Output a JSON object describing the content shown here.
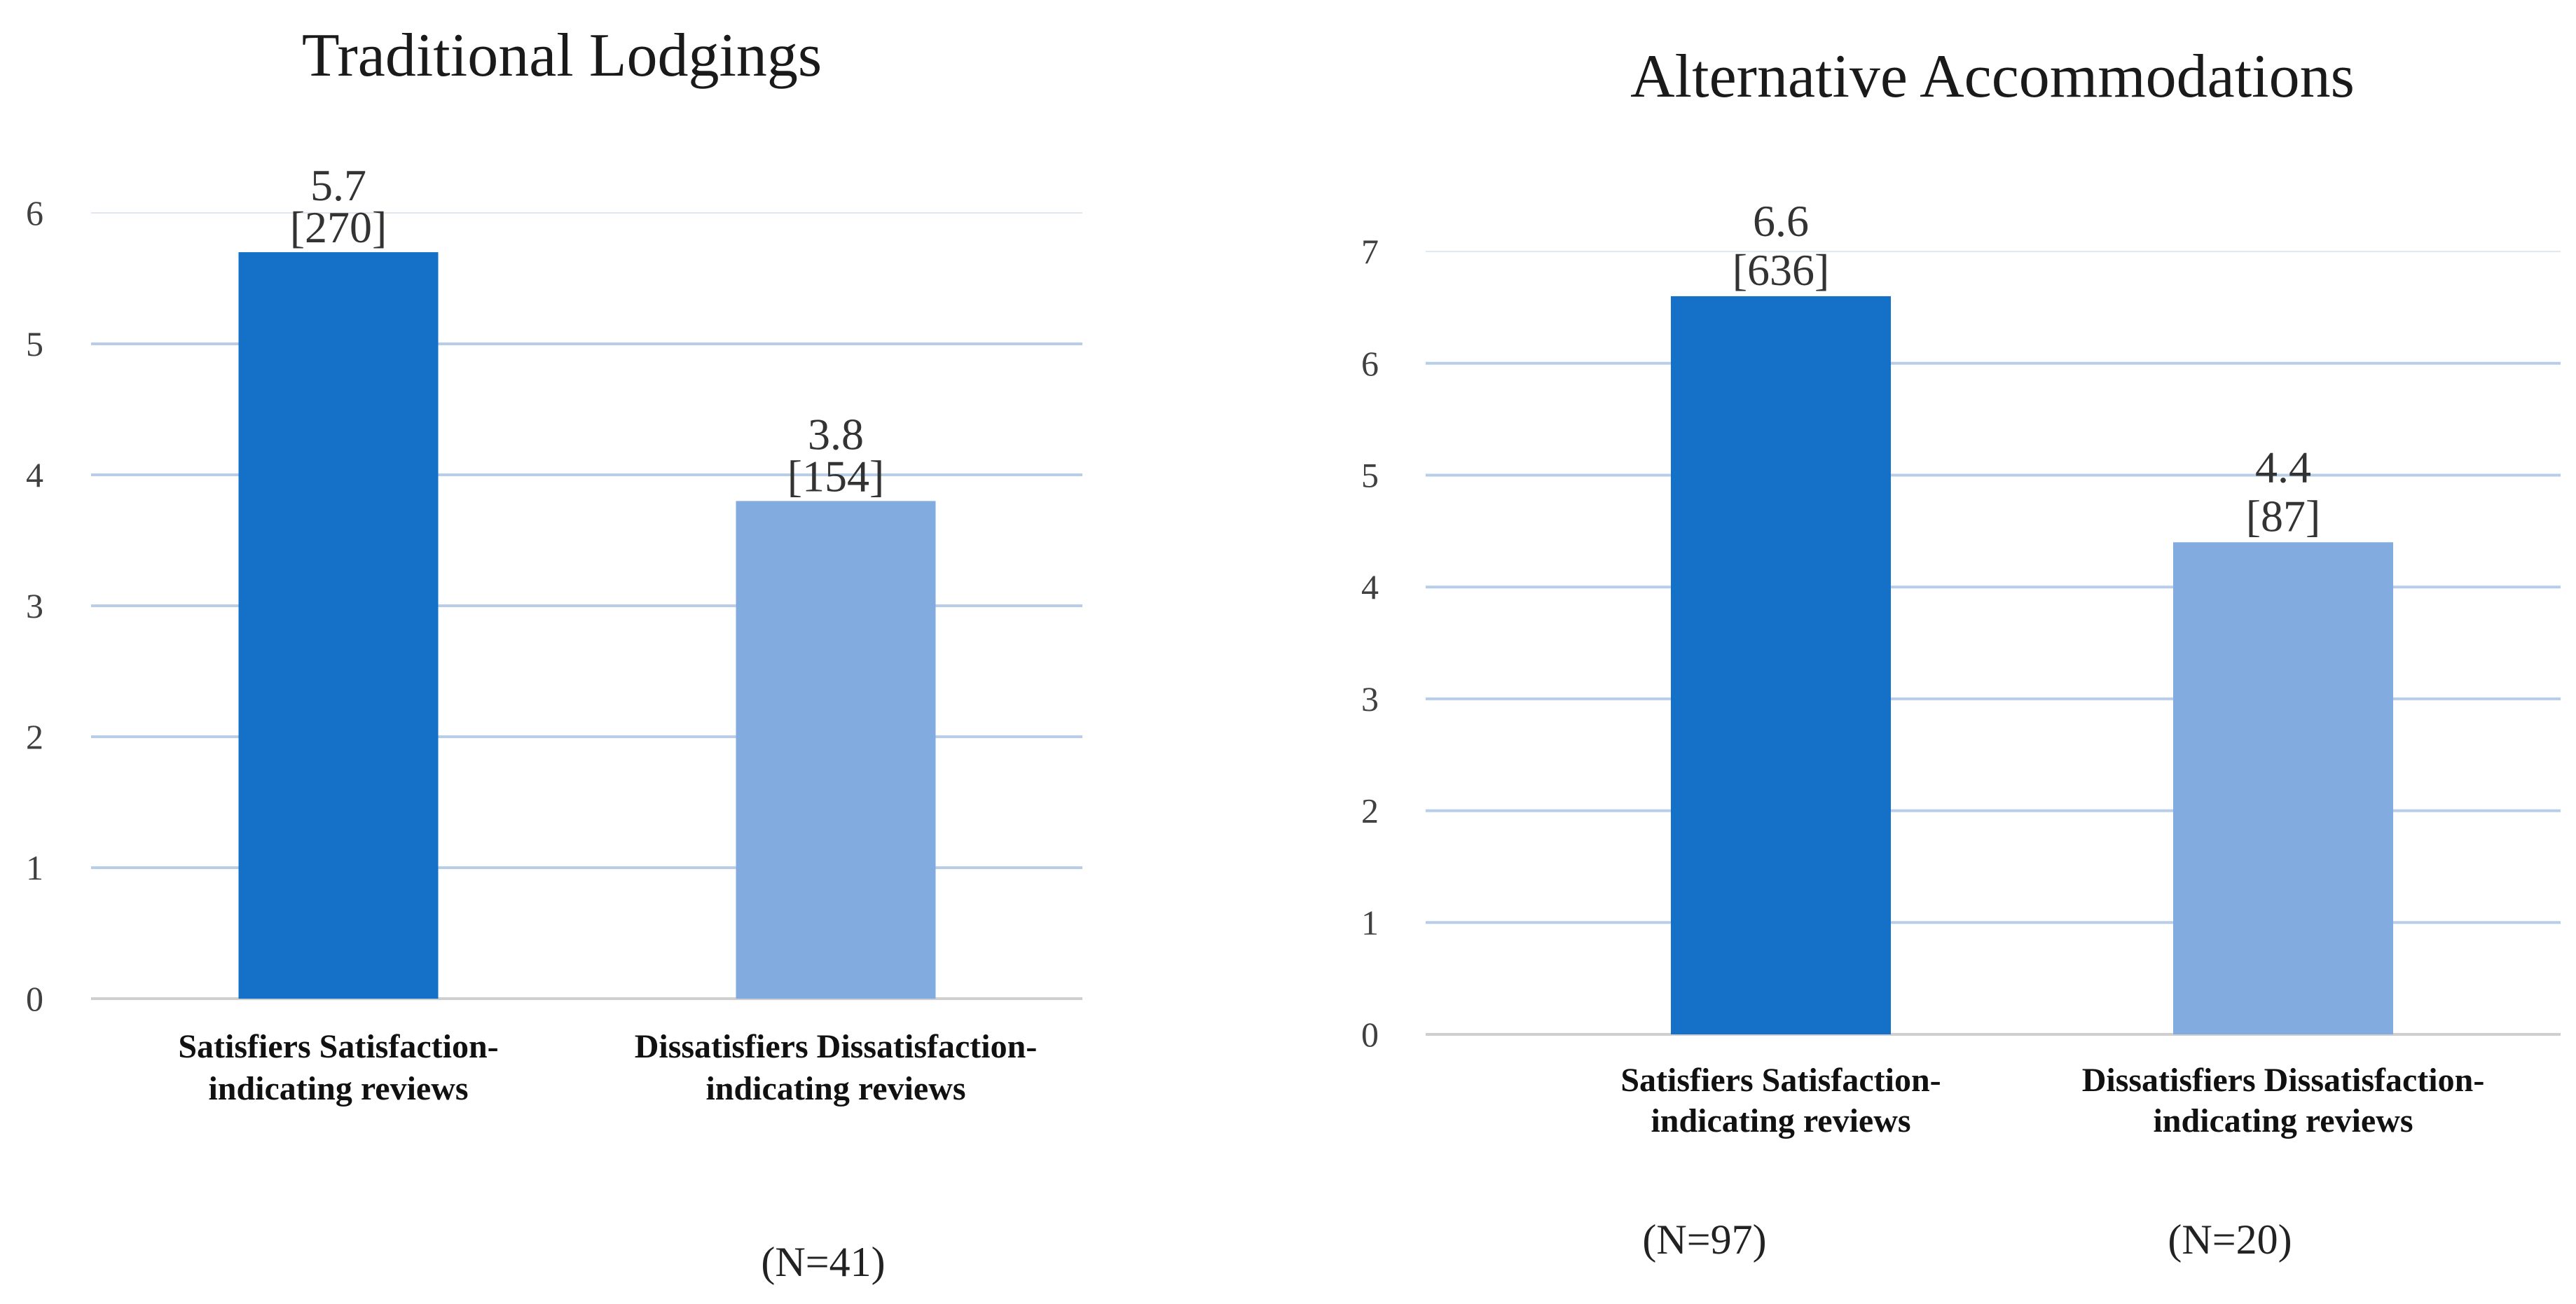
{
  "colors": {
    "satisfiers_bar": "#1570c8",
    "dissatisfiers_bar": "#82abe0",
    "gridline": "#b7cde8",
    "axis_line": "#cfcfcf",
    "tick_text": "#404040",
    "title_text": "#1a1a1a",
    "category_text": "#111111"
  },
  "chart_data": [
    {
      "type": "bar",
      "title": "Traditional Lodgings",
      "categories": [
        [
          "Satisfiers Satisfaction-",
          "indicating reviews"
        ],
        [
          "Dissatisfiers Dissatisfaction-",
          "indicating reviews"
        ]
      ],
      "values": [
        5.7,
        3.8
      ],
      "data_labels": [
        {
          "value": "5.7",
          "count": "[270]"
        },
        {
          "value": "3.8",
          "count": "[154]"
        }
      ],
      "yticks": [
        0,
        1,
        2,
        3,
        4,
        5,
        6
      ],
      "ylim": [
        0,
        6
      ],
      "grid": true,
      "notes": [
        "(N=41)"
      ]
    },
    {
      "type": "bar",
      "title": "Alternative Accommodations",
      "categories": [
        [
          "Satisfiers Satisfaction-",
          "indicating reviews"
        ],
        [
          "Dissatisfiers Dissatisfaction-",
          "indicating reviews"
        ]
      ],
      "values": [
        6.6,
        4.4
      ],
      "data_labels": [
        {
          "value": "6.6",
          "count": "[636]"
        },
        {
          "value": "4.4",
          "count": "[87]"
        }
      ],
      "yticks": [
        0,
        1,
        2,
        3,
        4,
        5,
        6,
        7
      ],
      "ylim": [
        0,
        7
      ],
      "grid": true,
      "notes": [
        "(N=97)",
        "(N=20)"
      ]
    }
  ]
}
